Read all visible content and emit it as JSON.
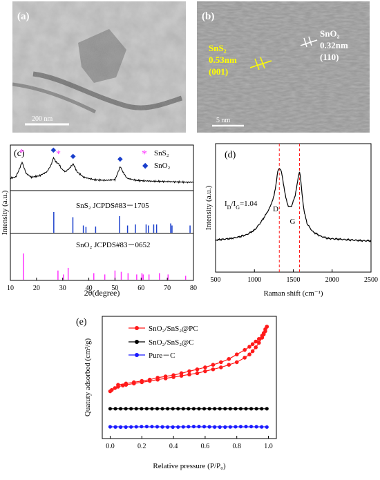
{
  "panels": {
    "a": {
      "label": "(a)",
      "scale_bar": "200  nm"
    },
    "b": {
      "label": "(b)",
      "scale_bar": "5 nm",
      "ann_sns2": [
        "SnS₂",
        "0.53nm",
        "(001)"
      ],
      "ann_sno2": [
        "SnO₂",
        "0.32nm",
        "(110)"
      ]
    }
  },
  "colors": {
    "sns2": "#ff33ff",
    "sno2": "#1a3fcc",
    "red": "#ff1a1a",
    "black": "#000000",
    "blue": "#1a1aff",
    "tem_yellow": "#ffff00"
  },
  "chart_data": [
    {
      "panel": "(c)",
      "type": "line",
      "xlabel": "2θ(degree)",
      "ylabel": "Intensity (a.u.)",
      "xlim": [
        10,
        80
      ],
      "xticks": [
        10,
        20,
        30,
        40,
        50,
        60,
        70,
        80
      ],
      "legend": [
        {
          "symbol": "*",
          "label": "SnS₂"
        },
        {
          "symbol": "◆",
          "label": "SnO₂"
        }
      ],
      "legend_position": "top-right",
      "markers": {
        "sns2": [
          14.5,
          28.5
        ],
        "sno2": [
          26.5,
          34,
          52
        ]
      },
      "pattern": {
        "x": [
          10,
          12,
          13,
          14.5,
          16,
          18,
          21,
          24,
          25.5,
          26.5,
          27.5,
          28.5,
          29.5,
          31,
          32.5,
          34,
          35.5,
          38,
          42,
          46,
          50,
          51,
          52,
          53,
          54.5,
          58,
          62,
          66,
          70,
          74,
          78,
          80
        ],
        "y": [
          0.35,
          0.38,
          0.55,
          0.85,
          0.5,
          0.38,
          0.42,
          0.55,
          0.75,
          1.0,
          0.85,
          0.8,
          0.65,
          0.55,
          0.65,
          0.8,
          0.55,
          0.38,
          0.3,
          0.28,
          0.3,
          0.5,
          0.72,
          0.55,
          0.35,
          0.28,
          0.26,
          0.25,
          0.24,
          0.23,
          0.22,
          0.22
        ]
      },
      "references": [
        {
          "label": "SnS₂  JCPDS#83－1705",
          "positions": [
            26.6,
            33.9,
            37.9,
            38.9,
            42.6,
            51.8,
            54.8,
            57.8,
            61.9,
            62.8,
            64.8,
            65.9,
            71.3,
            71.8,
            78.7
          ],
          "heights": [
            1.0,
            0.75,
            0.35,
            0.28,
            0.3,
            0.8,
            0.35,
            0.4,
            0.4,
            0.35,
            0.4,
            0.4,
            0.45,
            0.35,
            0.35
          ]
        },
        {
          "label": "SnO₂  JCPDS#83－0652",
          "positions": [
            15.0,
            28.2,
            30.3,
            32.1,
            41.9,
            46.1,
            50.0,
            52.4,
            55.0,
            58.3,
            60.3,
            60.8,
            63.0,
            67.0,
            70.3,
            77.0
          ],
          "heights": [
            1.0,
            0.35,
            0.2,
            0.45,
            0.25,
            0.2,
            0.35,
            0.3,
            0.25,
            0.2,
            0.25,
            0.2,
            0.2,
            0.25,
            0.2,
            0.15
          ]
        }
      ]
    },
    {
      "panel": "(d)",
      "type": "line",
      "xlabel": "Raman shift (cm⁻¹)",
      "ylabel": "Intensity (a.u.)",
      "xlim": [
        500,
        2500
      ],
      "xticks": [
        500,
        1000,
        1500,
        2000,
        2500
      ],
      "ratio_label": "I_D/I_G=1.04",
      "peak_labels": [
        "D",
        "G"
      ],
      "dashed_lines": [
        1320,
        1580
      ],
      "x": [
        500,
        600,
        700,
        800,
        900,
        1000,
        1050,
        1100,
        1150,
        1200,
        1250,
        1280,
        1300,
        1320,
        1340,
        1360,
        1400,
        1440,
        1480,
        1520,
        1550,
        1570,
        1580,
        1590,
        1610,
        1640,
        1680,
        1750,
        1850,
        1950,
        2100,
        2250,
        2400,
        2500
      ],
      "y": [
        0.05,
        0.06,
        0.07,
        0.09,
        0.12,
        0.18,
        0.24,
        0.31,
        0.39,
        0.48,
        0.62,
        0.8,
        0.95,
        1.0,
        0.97,
        0.88,
        0.62,
        0.48,
        0.5,
        0.62,
        0.78,
        0.92,
        0.95,
        0.9,
        0.68,
        0.42,
        0.26,
        0.16,
        0.1,
        0.07,
        0.06,
        0.05,
        0.04,
        0.04
      ]
    },
    {
      "panel": "(e)",
      "type": "line",
      "xlabel": "Relative pressure (P/P₀)",
      "ylabel": "Quatuty adsorbed (cm³/g)",
      "xlim": [
        -0.05,
        1.05
      ],
      "xticks": [
        0.0,
        0.2,
        0.4,
        0.6,
        0.8,
        1.0
      ],
      "legend_position": "top-left",
      "series": [
        {
          "name": "SnO₂/SnS₂@PC",
          "color": "red",
          "x": [
            0.0,
            0.01,
            0.03,
            0.05,
            0.08,
            0.1,
            0.15,
            0.2,
            0.25,
            0.3,
            0.35,
            0.4,
            0.45,
            0.5,
            0.55,
            0.6,
            0.65,
            0.7,
            0.75,
            0.8,
            0.85,
            0.88,
            0.9,
            0.92,
            0.94,
            0.96,
            0.97,
            0.98,
            0.99
          ],
          "y": [
            0.0,
            0.02,
            0.05,
            0.07,
            0.09,
            0.1,
            0.12,
            0.14,
            0.16,
            0.18,
            0.2,
            0.22,
            0.24,
            0.26,
            0.28,
            0.31,
            0.34,
            0.37,
            0.41,
            0.45,
            0.52,
            0.57,
            0.62,
            0.68,
            0.75,
            0.83,
            0.88,
            0.93,
            1.0
          ],
          "desorption_x": [
            0.99,
            0.98,
            0.97,
            0.96,
            0.94,
            0.92,
            0.9,
            0.88,
            0.85,
            0.8,
            0.75,
            0.7,
            0.65,
            0.6,
            0.55,
            0.5,
            0.45,
            0.4,
            0.35,
            0.3,
            0.25,
            0.2,
            0.15,
            0.1,
            0.05
          ],
          "desorption_y": [
            1.0,
            0.96,
            0.9,
            0.86,
            0.81,
            0.77,
            0.73,
            0.69,
            0.64,
            0.57,
            0.5,
            0.45,
            0.41,
            0.37,
            0.34,
            0.31,
            0.28,
            0.25,
            0.23,
            0.21,
            0.18,
            0.16,
            0.14,
            0.12,
            0.1
          ]
        },
        {
          "name": "SnO₂/SnS₂@C",
          "color": "black",
          "x_start": 0.0,
          "x_end": 0.99,
          "level": -0.27
        },
        {
          "name": "Pure－C",
          "color": "blue",
          "x_start": 0.0,
          "x_end": 0.99,
          "level": -0.55
        }
      ]
    }
  ]
}
